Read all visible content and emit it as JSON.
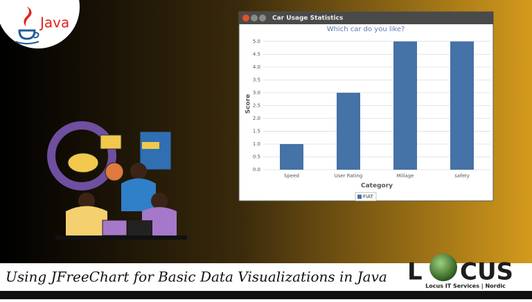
{
  "java_logo": "Java",
  "window_title": "Car Usage Statistics",
  "chart_data": {
    "type": "bar",
    "title": "Which car do you like?",
    "x_label": "Category",
    "y_label": "Score",
    "categories": [
      "Speed",
      "User Rating",
      "Millage",
      "safety"
    ],
    "series": [
      {
        "name": "FIAT",
        "color": "#4572a7",
        "values": [
          1,
          3,
          5,
          5
        ]
      }
    ],
    "ylim": [
      0,
      5.13
    ],
    "yticks": [
      {
        "value": 0,
        "label": "0.0"
      },
      {
        "value": 0.5,
        "label": "0.5"
      },
      {
        "value": 1,
        "label": "1.0"
      },
      {
        "value": 1.5,
        "label": "1.5"
      },
      {
        "value": 2,
        "label": "2.0"
      },
      {
        "value": 2.5,
        "label": "2.5"
      },
      {
        "value": 3,
        "label": "3.0"
      },
      {
        "value": 3.5,
        "label": "3.5"
      },
      {
        "value": 4,
        "label": "4.0"
      },
      {
        "value": 4.5,
        "label": "4.5"
      },
      {
        "value": 5,
        "label": "5.0"
      }
    ],
    "grid": true,
    "legend": "bottom"
  },
  "banner": "Using JFreeChart for Basic Data Visualizations in Java",
  "logo": {
    "left": "L",
    "right": "CUS",
    "tagline": "Locus IT Services | Nordic"
  }
}
